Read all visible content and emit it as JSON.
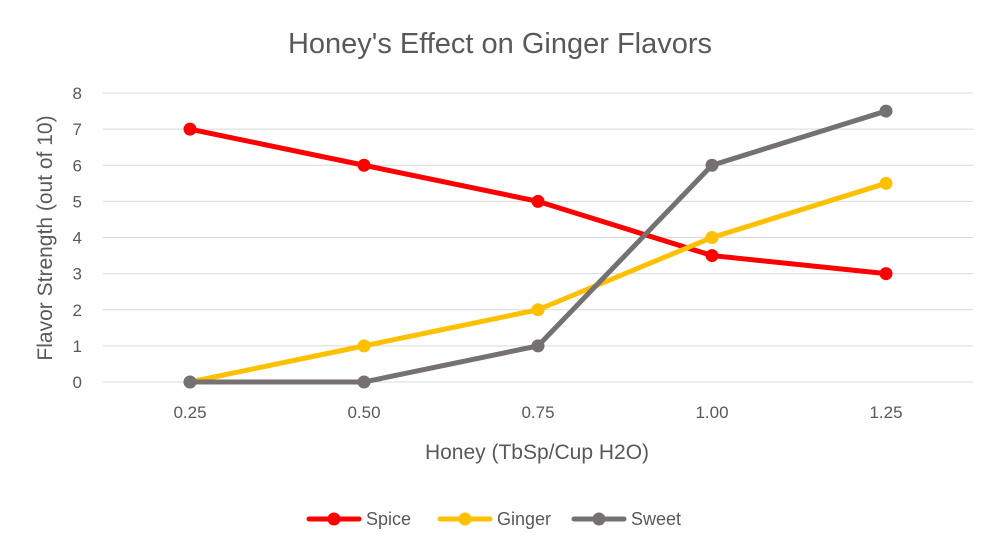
{
  "chart_data": {
    "type": "line",
    "title": "Honey's Effect on Ginger Flavors",
    "xlabel": "Honey (TbSp/Cup H2O)",
    "ylabel": "Flavor Strength (out of 10)",
    "categories": [
      "0.25",
      "0.50",
      "0.75",
      "1.00",
      "1.25"
    ],
    "ylim": [
      0,
      8
    ],
    "yticks": [
      "0",
      "1",
      "2",
      "3",
      "4",
      "5",
      "6",
      "7",
      "8"
    ],
    "grid": true,
    "legend_position": "bottom",
    "series": [
      {
        "name": "Spice",
        "color": "#ff0000",
        "values": [
          7,
          6,
          5,
          3.5,
          3
        ]
      },
      {
        "name": "Ginger",
        "color": "#ffc000",
        "values": [
          0,
          1,
          2,
          4,
          5.5
        ]
      },
      {
        "name": "Sweet",
        "color": "#767171",
        "values": [
          0,
          0,
          1,
          6,
          7.5
        ]
      }
    ]
  }
}
